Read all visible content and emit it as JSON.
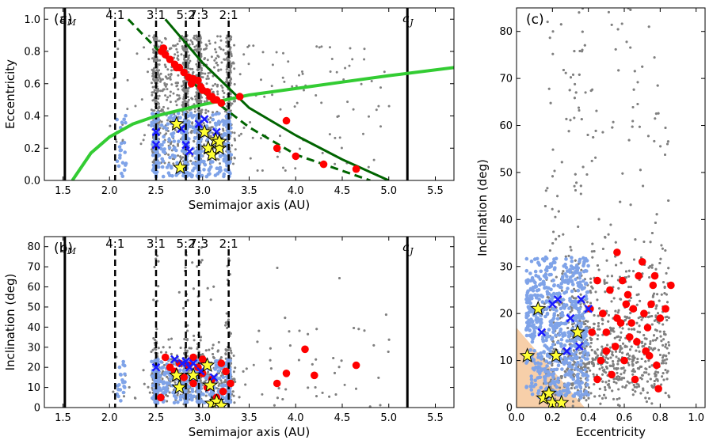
{
  "colors": {
    "background_points": "#808080",
    "blue_points": "#7fa3e8",
    "red_points": "#ff0000",
    "blue_cross": "#1a1aff",
    "star_fill": "#ffff33",
    "star_edge": "#000000",
    "light_green_curve": "#33cc33",
    "dark_green_curve": "#006400",
    "wedge_fill": "#f7cfa9"
  },
  "chart_data": [
    {
      "panel": "a",
      "type": "scatter",
      "panel_label": "(a)",
      "xlabel": "Semimajor axis (AU)",
      "ylabel": "Eccentricity",
      "xlim": [
        1.3,
        5.7
      ],
      "ylim": [
        0.0,
        1.07
      ],
      "xticks": [
        "1.5",
        "2.0",
        "2.5",
        "3.0",
        "3.5",
        "4.0",
        "4.5",
        "5.0",
        "5.5"
      ],
      "yticks": [
        "0.0",
        "0.2",
        "0.4",
        "0.6",
        "0.8",
        "1.0"
      ],
      "planet_lines": [
        {
          "label": "a_M",
          "x": 1.52
        },
        {
          "label": "a_J",
          "x": 5.2
        }
      ],
      "resonances": [
        {
          "label": "4:1",
          "x": 2.06
        },
        {
          "label": "3:1",
          "x": 2.5
        },
        {
          "label": "5:2",
          "x": 2.82
        },
        {
          "label": "7:3",
          "x": 2.96
        },
        {
          "label": "2:1",
          "x": 3.28
        }
      ],
      "curves": [
        {
          "name": "light green q-boundary",
          "color": "light_green",
          "points": [
            [
              1.6,
              0.0
            ],
            [
              1.8,
              0.17
            ],
            [
              2.0,
              0.27
            ],
            [
              2.25,
              0.35
            ],
            [
              2.5,
              0.4
            ],
            [
              3.0,
              0.47
            ],
            [
              3.5,
              0.53
            ],
            [
              4.0,
              0.57
            ],
            [
              4.5,
              0.61
            ],
            [
              5.0,
              0.65
            ],
            [
              5.7,
              0.7
            ]
          ]
        },
        {
          "name": "dark green solid",
          "color": "dark_green",
          "style": "solid",
          "points": [
            [
              2.6,
              1.0
            ],
            [
              3.0,
              0.73
            ],
            [
              3.5,
              0.45
            ],
            [
              4.0,
              0.28
            ],
            [
              4.5,
              0.13
            ],
            [
              5.0,
              0.0
            ]
          ]
        },
        {
          "name": "dark green dashed",
          "color": "dark_green",
          "style": "dashed",
          "points": [
            [
              2.2,
              1.0
            ],
            [
              2.5,
              0.82
            ],
            [
              3.0,
              0.55
            ],
            [
              3.5,
              0.33
            ],
            [
              4.0,
              0.16
            ],
            [
              4.5,
              0.06
            ],
            [
              4.8,
              0.0
            ]
          ]
        }
      ],
      "red_points": [
        [
          2.56,
          0.8
        ],
        [
          2.6,
          0.78
        ],
        [
          2.65,
          0.75
        ],
        [
          2.7,
          0.72
        ],
        [
          2.75,
          0.7
        ],
        [
          2.8,
          0.67
        ],
        [
          2.85,
          0.64
        ],
        [
          2.9,
          0.63
        ],
        [
          2.95,
          0.62
        ],
        [
          3.0,
          0.56
        ],
        [
          3.05,
          0.55
        ],
        [
          3.1,
          0.52
        ],
        [
          3.12,
          0.5
        ],
        [
          3.15,
          0.5
        ],
        [
          3.2,
          0.48
        ],
        [
          2.98,
          0.58
        ],
        [
          3.08,
          0.52
        ],
        [
          3.4,
          0.52
        ],
        [
          3.9,
          0.37
        ],
        [
          3.8,
          0.2
        ],
        [
          4.0,
          0.15
        ],
        [
          4.3,
          0.1
        ],
        [
          4.65,
          0.07
        ],
        [
          2.88,
          0.6
        ],
        [
          2.72,
          0.7
        ],
        [
          2.58,
          0.82
        ]
      ],
      "blue_crosses": [
        [
          2.5,
          0.3
        ],
        [
          2.5,
          0.22
        ],
        [
          2.77,
          0.32
        ],
        [
          2.82,
          0.22
        ],
        [
          2.86,
          0.18
        ],
        [
          2.96,
          0.35
        ],
        [
          3.02,
          0.38
        ],
        [
          3.15,
          0.3
        ]
      ],
      "stars": [
        [
          2.72,
          0.35
        ],
        [
          2.76,
          0.08
        ],
        [
          3.02,
          0.3
        ],
        [
          3.06,
          0.2
        ],
        [
          3.1,
          0.16
        ],
        [
          3.14,
          0.25
        ],
        [
          3.18,
          0.2
        ],
        [
          3.18,
          0.24
        ]
      ]
    },
    {
      "panel": "b",
      "type": "scatter",
      "panel_label": "(b)",
      "xlabel": "Semimajor axis (AU)",
      "ylabel": "Inclination (deg)",
      "xlim": [
        1.3,
        5.7
      ],
      "ylim": [
        0,
        85
      ],
      "xticks": [
        "1.5",
        "2.0",
        "2.5",
        "3.0",
        "3.5",
        "4.0",
        "4.5",
        "5.0",
        "5.5"
      ],
      "yticks": [
        "0",
        "10",
        "20",
        "30",
        "40",
        "50",
        "60",
        "70",
        "80"
      ],
      "planet_lines": [
        {
          "label": "a_M",
          "x": 1.52
        },
        {
          "label": "a_J",
          "x": 5.2
        }
      ],
      "resonances": [
        {
          "label": "4:1",
          "x": 2.06
        },
        {
          "label": "3:1",
          "x": 2.5
        },
        {
          "label": "5:2",
          "x": 2.82
        },
        {
          "label": "7:3",
          "x": 2.96
        },
        {
          "label": "2:1",
          "x": 3.28
        }
      ],
      "red_points": [
        [
          2.55,
          5
        ],
        [
          2.6,
          25
        ],
        [
          2.65,
          20
        ],
        [
          2.7,
          18
        ],
        [
          2.75,
          22
        ],
        [
          2.8,
          15
        ],
        [
          2.85,
          21
        ],
        [
          2.9,
          12
        ],
        [
          2.95,
          20
        ],
        [
          3.0,
          17
        ],
        [
          3.05,
          10
        ],
        [
          3.1,
          14
        ],
        [
          3.15,
          5
        ],
        [
          3.2,
          22
        ],
        [
          3.25,
          18
        ],
        [
          3.3,
          12
        ],
        [
          3.8,
          12
        ],
        [
          3.9,
          17
        ],
        [
          4.1,
          29
        ],
        [
          4.2,
          16
        ],
        [
          4.65,
          21
        ],
        [
          2.9,
          25
        ],
        [
          3.0,
          24
        ],
        [
          3.22,
          8
        ]
      ],
      "blue_crosses": [
        [
          2.5,
          20
        ],
        [
          2.7,
          24
        ],
        [
          2.78,
          22
        ],
        [
          2.82,
          23
        ],
        [
          2.86,
          20
        ],
        [
          2.9,
          22
        ],
        [
          2.98,
          18
        ],
        [
          3.12,
          15
        ]
      ],
      "stars": [
        [
          2.72,
          16
        ],
        [
          2.75,
          10
        ],
        [
          2.9,
          16
        ],
        [
          3.05,
          21
        ],
        [
          3.08,
          11
        ],
        [
          3.1,
          2
        ],
        [
          3.15,
          3
        ],
        [
          3.2,
          1
        ]
      ]
    },
    {
      "panel": "c",
      "type": "scatter",
      "panel_label": "(c)",
      "xlabel": "Eccentricity",
      "ylabel": "Inclination (deg)",
      "xlim": [
        0.0,
        1.05
      ],
      "ylim": [
        0,
        85
      ],
      "xticks": [
        "0.0",
        "0.2",
        "0.4",
        "0.6",
        "0.8",
        "1.0"
      ],
      "yticks": [
        "0",
        "10",
        "20",
        "30",
        "40",
        "50",
        "60",
        "70",
        "80"
      ],
      "wedge": [
        [
          0,
          0
        ],
        [
          0,
          17
        ],
        [
          0.38,
          0
        ]
      ],
      "red_points": [
        [
          0.41,
          21
        ],
        [
          0.45,
          27
        ],
        [
          0.48,
          20
        ],
        [
          0.5,
          16
        ],
        [
          0.52,
          25
        ],
        [
          0.55,
          13
        ],
        [
          0.56,
          33
        ],
        [
          0.58,
          18
        ],
        [
          0.6,
          10
        ],
        [
          0.62,
          24
        ],
        [
          0.63,
          15
        ],
        [
          0.65,
          21
        ],
        [
          0.66,
          6
        ],
        [
          0.68,
          28
        ],
        [
          0.7,
          31
        ],
        [
          0.72,
          12
        ],
        [
          0.73,
          17
        ],
        [
          0.75,
          22
        ],
        [
          0.76,
          26
        ],
        [
          0.78,
          9
        ],
        [
          0.8,
          19
        ],
        [
          0.79,
          4
        ],
        [
          0.47,
          10
        ],
        [
          0.53,
          7
        ],
        [
          0.59,
          27
        ],
        [
          0.67,
          14
        ],
        [
          0.71,
          20
        ],
        [
          0.77,
          28
        ],
        [
          0.42,
          16
        ],
        [
          0.5,
          12
        ],
        [
          0.61,
          22
        ],
        [
          0.74,
          11
        ],
        [
          0.83,
          21
        ],
        [
          0.64,
          18
        ],
        [
          0.56,
          19
        ],
        [
          0.45,
          6
        ],
        [
          0.86,
          26
        ]
      ],
      "blue_crosses": [
        [
          0.14,
          16
        ],
        [
          0.2,
          22
        ],
        [
          0.23,
          23
        ],
        [
          0.3,
          19
        ],
        [
          0.36,
          23
        ],
        [
          0.4,
          21
        ],
        [
          0.35,
          13
        ],
        [
          0.28,
          12
        ]
      ],
      "stars": [
        [
          0.06,
          11
        ],
        [
          0.12,
          21
        ],
        [
          0.15,
          2
        ],
        [
          0.18,
          3
        ],
        [
          0.2,
          1
        ],
        [
          0.22,
          11
        ],
        [
          0.25,
          1
        ],
        [
          0.34,
          16
        ]
      ]
    }
  ]
}
